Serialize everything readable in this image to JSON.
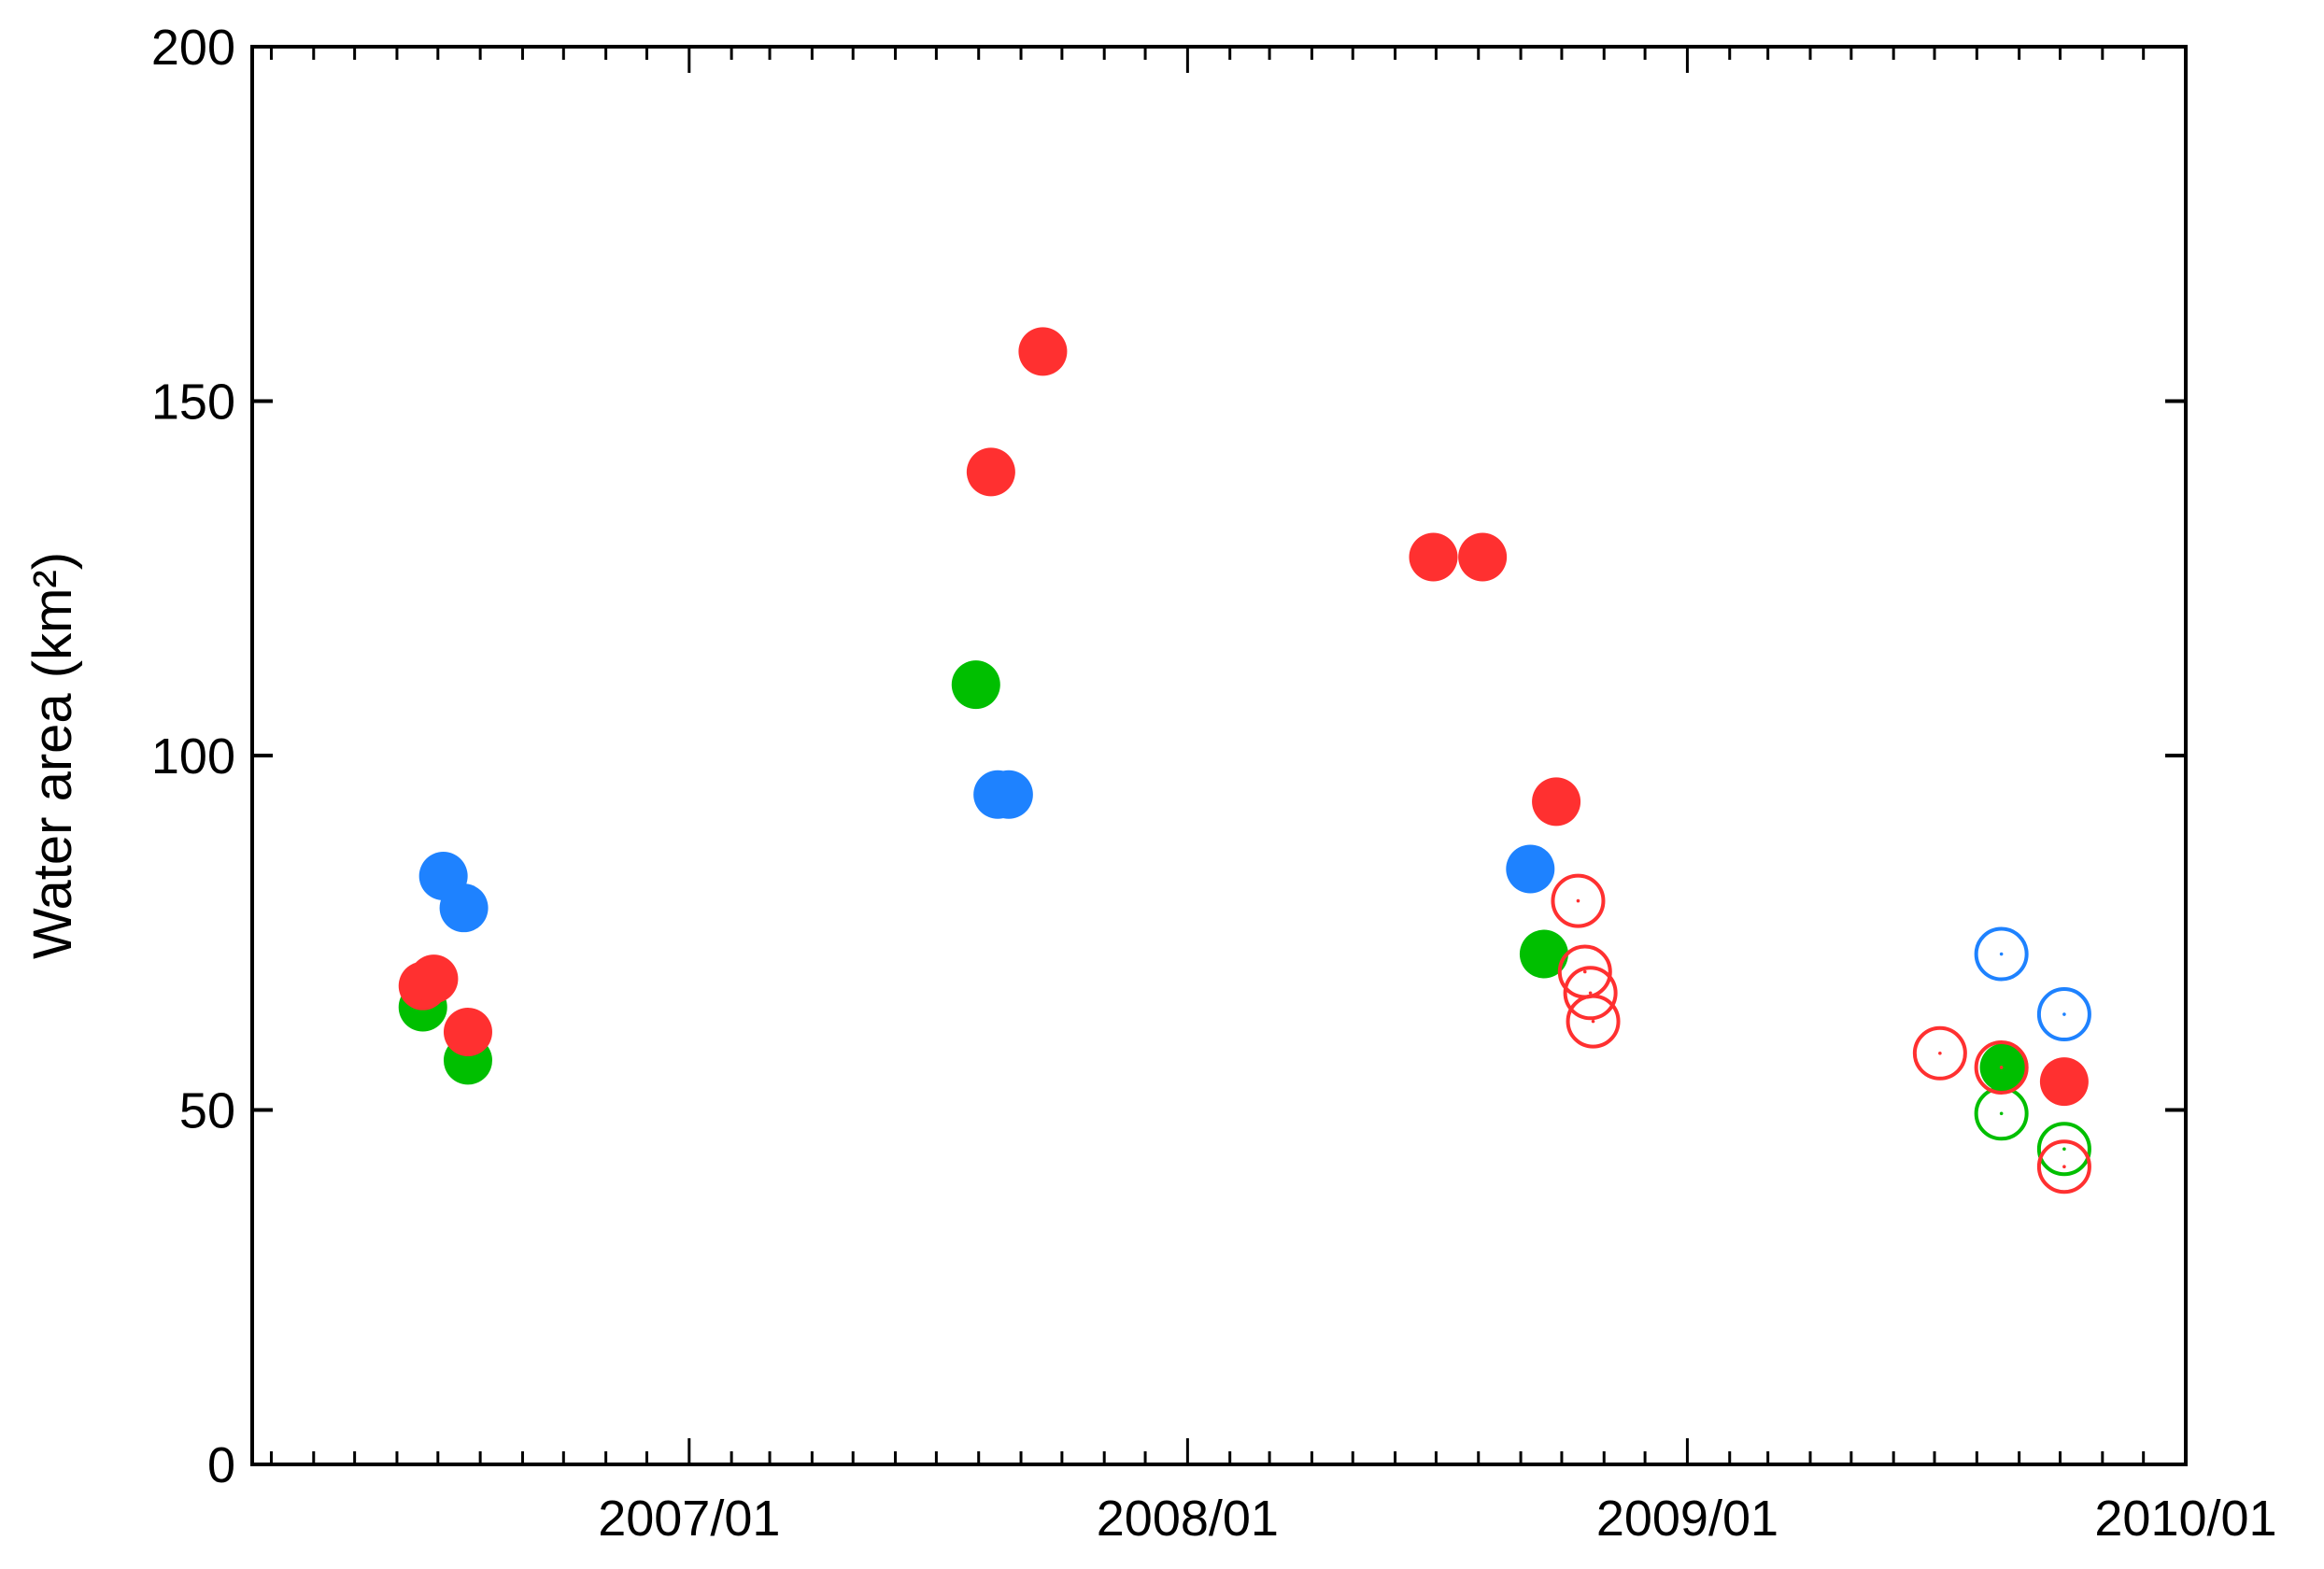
{
  "chart_data": {
    "type": "scatter",
    "ylabel": "Water area (km²)",
    "xlabel": "",
    "title": "",
    "xlim": [
      "2006-02-15",
      "2010-01-01"
    ],
    "ylim": [
      0,
      200
    ],
    "x_ticks": [
      "2007/01",
      "2008/01",
      "2009/01",
      "2010/01"
    ],
    "y_ticks": [
      "0",
      "50",
      "100",
      "150",
      "200"
    ],
    "grid": false,
    "legend": "none",
    "series": [
      {
        "color": "#1e82ff",
        "filled": true,
        "points": [
          {
            "x": "2006-07-05",
            "y": 83
          },
          {
            "x": "2006-07-20",
            "y": 78.5
          },
          {
            "x": "2007-08-15",
            "y": 94.5
          },
          {
            "x": "2007-08-23",
            "y": 94.5
          },
          {
            "x": "2008-09-08",
            "y": 84
          }
        ]
      },
      {
        "color": "#00bf00",
        "filled": true,
        "points": [
          {
            "x": "2006-06-20",
            "y": 64.5
          },
          {
            "x": "2006-07-23",
            "y": 57
          },
          {
            "x": "2007-07-30",
            "y": 110
          },
          {
            "x": "2008-09-18",
            "y": 72
          },
          {
            "x": "2009-08-21",
            "y": 56
          }
        ]
      },
      {
        "color": "#ff3030",
        "filled": true,
        "points": [
          {
            "x": "2006-06-20",
            "y": 67.5
          },
          {
            "x": "2006-06-28",
            "y": 68.5
          },
          {
            "x": "2006-07-23",
            "y": 61
          },
          {
            "x": "2007-08-10",
            "y": 140
          },
          {
            "x": "2007-09-17",
            "y": 157
          },
          {
            "x": "2008-06-29",
            "y": 128
          },
          {
            "x": "2008-08-04",
            "y": 128
          },
          {
            "x": "2008-09-27",
            "y": 93.5
          },
          {
            "x": "2009-10-04",
            "y": 54
          }
        ]
      },
      {
        "color": "#1e82ff",
        "filled": false,
        "points": [
          {
            "x": "2009-08-19",
            "y": 72
          },
          {
            "x": "2009-10-04",
            "y": 63.5
          }
        ]
      },
      {
        "color": "#00bf00",
        "filled": false,
        "points": [
          {
            "x": "2009-08-19",
            "y": 49.5
          },
          {
            "x": "2009-10-04",
            "y": 44.5
          }
        ]
      },
      {
        "color": "#ff3030",
        "filled": false,
        "points": [
          {
            "x": "2008-10-13",
            "y": 79.5
          },
          {
            "x": "2008-10-18",
            "y": 69.5
          },
          {
            "x": "2008-10-22",
            "y": 66.5
          },
          {
            "x": "2008-10-24",
            "y": 62.5
          },
          {
            "x": "2009-07-05",
            "y": 58
          },
          {
            "x": "2009-08-19",
            "y": 56
          },
          {
            "x": "2009-10-04",
            "y": 42
          }
        ]
      }
    ]
  }
}
